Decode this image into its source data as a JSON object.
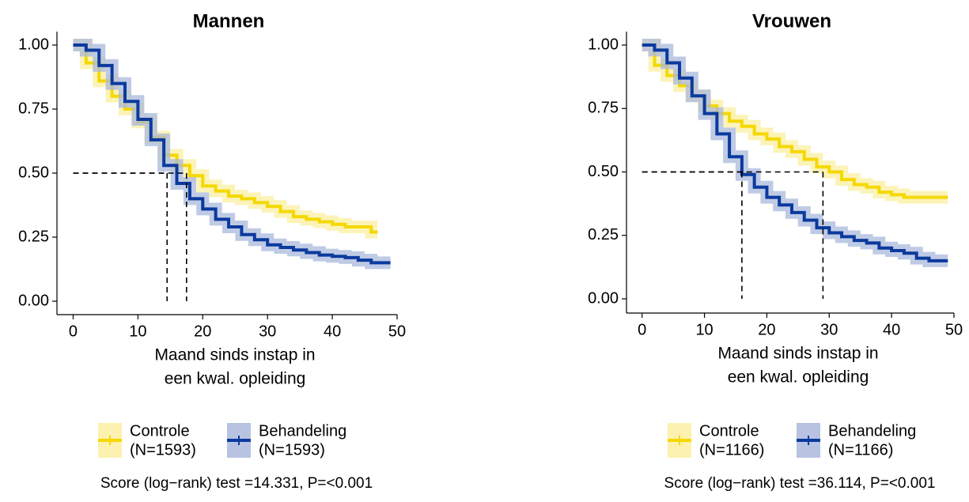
{
  "chart_data": [
    {
      "type": "line",
      "title": "Mannen",
      "x_label": [
        "Maand sinds instap in",
        "een kwal. opleiding"
      ],
      "x": [
        0,
        2,
        4,
        6,
        8,
        10,
        12,
        14,
        16,
        18,
        20,
        22,
        24,
        26,
        28,
        30,
        32,
        34,
        36,
        38,
        40,
        42,
        44,
        46,
        48
      ],
      "series": [
        {
          "name": "Controle",
          "label": "(N=1593)",
          "color": "#f5d800",
          "band_color": "#fbefa0",
          "values": [
            1.0,
            0.93,
            0.86,
            0.8,
            0.75,
            0.7,
            0.64,
            0.57,
            0.53,
            0.49,
            0.45,
            0.43,
            0.41,
            0.4,
            0.385,
            0.37,
            0.35,
            0.33,
            0.32,
            0.31,
            0.3,
            0.29,
            0.29,
            0.27,
            null
          ]
        },
        {
          "name": "Behandeling",
          "label": "(N=1593)",
          "color": "#0b3a9e",
          "band_color": "#aab8dc",
          "values": [
            1.0,
            0.98,
            0.92,
            0.85,
            0.78,
            0.71,
            0.63,
            0.53,
            0.46,
            0.4,
            0.36,
            0.32,
            0.29,
            0.26,
            0.24,
            0.22,
            0.21,
            0.2,
            0.19,
            0.18,
            0.175,
            0.17,
            0.16,
            0.15,
            0.15
          ]
        }
      ],
      "median_y": 0.5,
      "median_x": [
        14.5,
        17.5
      ],
      "xlim": [
        -2.5,
        50
      ],
      "ylim": [
        -0.05,
        1.05
      ],
      "xticks": [
        0,
        10,
        20,
        30,
        40,
        50
      ],
      "yticks": [
        {
          "value": 0,
          "label": "0.00"
        },
        {
          "value": 0.25,
          "label": "0.25"
        },
        {
          "value": 0.5,
          "label": "0.50"
        },
        {
          "value": 0.75,
          "label": "0.75"
        },
        {
          "value": 1,
          "label": "1.00"
        }
      ],
      "annotation": "Score (log−rank) test =14.331, P=<0.001"
    },
    {
      "type": "line",
      "title": "Vrouwen",
      "x_label": [
        "Maand sinds instap in",
        "een kwal. opleiding"
      ],
      "x": [
        0,
        2,
        4,
        6,
        8,
        10,
        12,
        14,
        16,
        18,
        20,
        22,
        24,
        26,
        28,
        30,
        32,
        34,
        36,
        38,
        40,
        42,
        44,
        46,
        48
      ],
      "series": [
        {
          "name": "Controle",
          "label": "(N=1166)",
          "color": "#f5d800",
          "band_color": "#fbefa0",
          "values": [
            1.0,
            0.92,
            0.88,
            0.84,
            0.8,
            0.76,
            0.73,
            0.7,
            0.68,
            0.65,
            0.63,
            0.6,
            0.58,
            0.55,
            0.52,
            0.5,
            0.47,
            0.45,
            0.44,
            0.42,
            0.41,
            0.4,
            0.4,
            0.4,
            0.4
          ]
        },
        {
          "name": "Behandeling",
          "label": "(N=1166)",
          "color": "#0b3a9e",
          "band_color": "#aab8dc",
          "values": [
            1.0,
            0.98,
            0.93,
            0.87,
            0.8,
            0.73,
            0.65,
            0.56,
            0.49,
            0.44,
            0.4,
            0.37,
            0.34,
            0.31,
            0.28,
            0.26,
            0.245,
            0.23,
            0.22,
            0.2,
            0.19,
            0.18,
            0.16,
            0.15,
            0.15
          ]
        }
      ],
      "median_y": 0.5,
      "median_x": [
        16,
        29
      ],
      "xlim": [
        -2.5,
        50
      ],
      "ylim": [
        -0.05,
        1.05
      ],
      "xticks": [
        0,
        10,
        20,
        30,
        40,
        50
      ],
      "yticks": [
        {
          "value": 0,
          "label": "0.00"
        },
        {
          "value": 0.25,
          "label": "0.25"
        },
        {
          "value": 0.5,
          "label": "0.50"
        },
        {
          "value": 0.75,
          "label": "0.75"
        },
        {
          "value": 1,
          "label": "1.00"
        }
      ],
      "annotation": "Score (log−rank) test =36.114, P=<0.001"
    }
  ]
}
